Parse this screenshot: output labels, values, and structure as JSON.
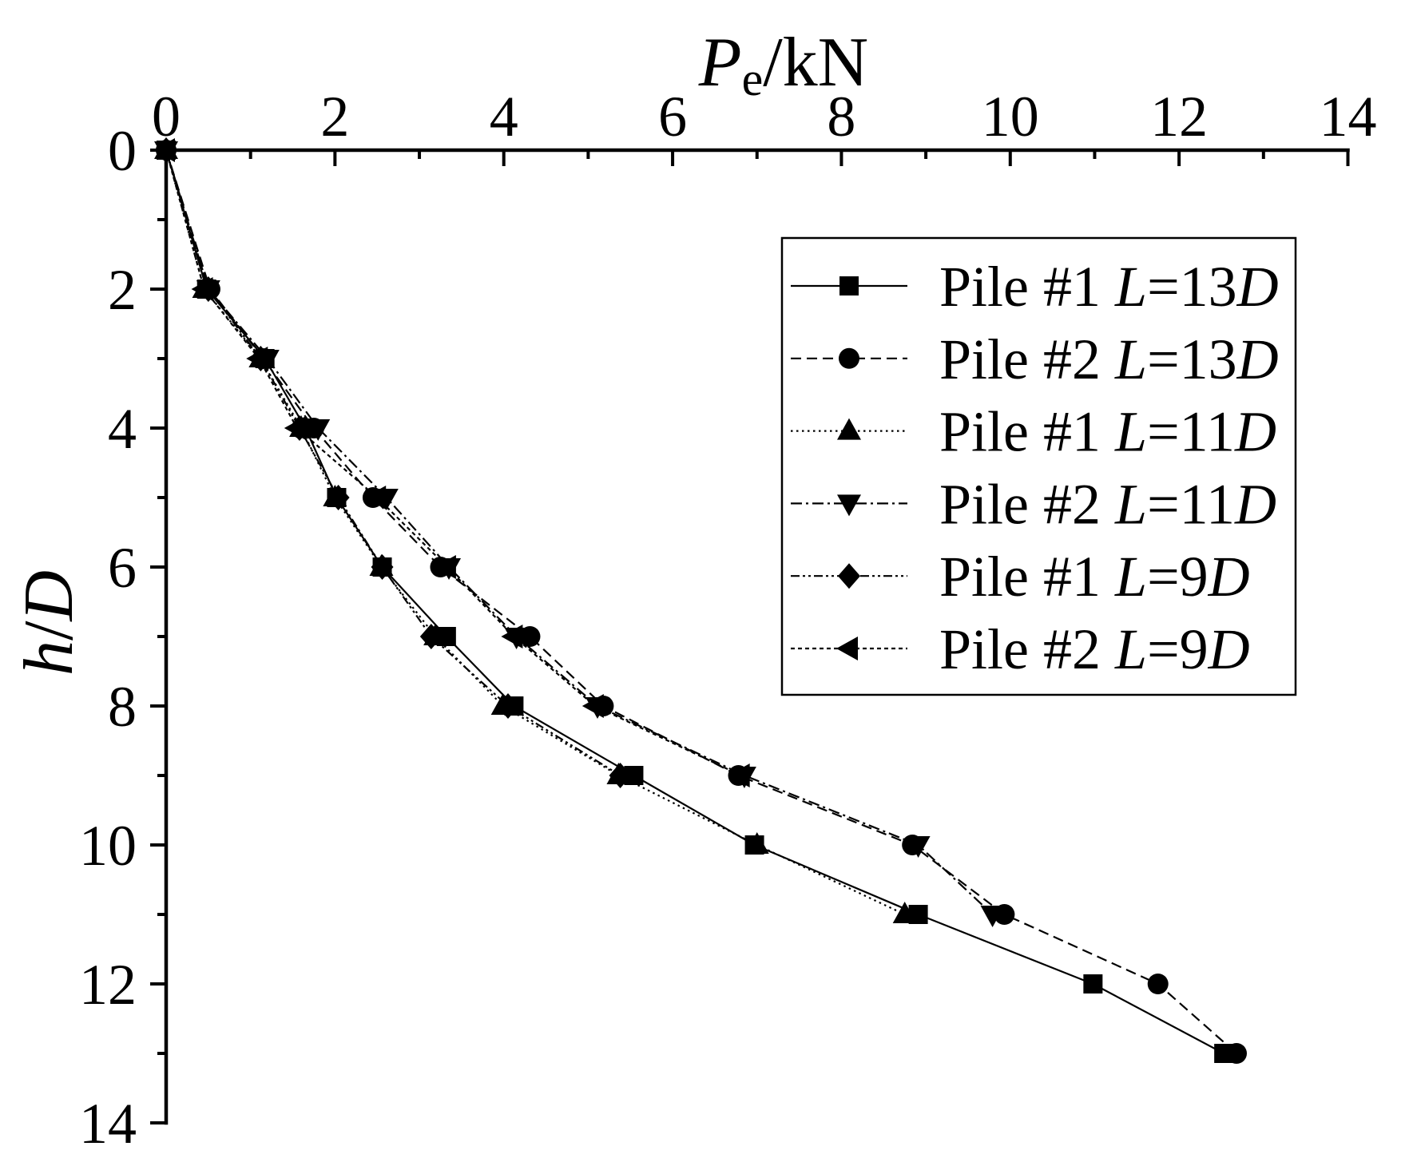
{
  "chart_data": {
    "type": "line",
    "xlabel": {
      "symbol": "P",
      "subscript": "e",
      "unit": "/kN"
    },
    "ylabel": {
      "numerator": "h",
      "separator": "/",
      "denominator": "D"
    },
    "x_axis_position": "top",
    "y_inverted": true,
    "xlim": [
      0,
      14
    ],
    "ylim": [
      0,
      14
    ],
    "x_ticks": [
      0,
      2,
      4,
      6,
      8,
      10,
      12,
      14
    ],
    "y_ticks": [
      0,
      2,
      4,
      6,
      8,
      10,
      12,
      14
    ],
    "grid": false,
    "legend_position": "top-right",
    "series": [
      {
        "name": "Pile #1 L=13D",
        "marker": "square",
        "line_style": "solid",
        "color": "#000000",
        "x": [
          0,
          0.48,
          1.17,
          1.65,
          2.02,
          2.56,
          3.32,
          4.12,
          5.54,
          6.97,
          8.91,
          10.98,
          12.53
        ],
        "y": [
          0,
          2,
          3,
          4,
          5,
          6,
          7,
          8,
          9,
          10,
          11,
          12,
          13
        ]
      },
      {
        "name": "Pile #2 L=13D",
        "marker": "circle",
        "line_style": "dashed",
        "color": "#000000",
        "x": [
          0,
          0.52,
          1.15,
          1.75,
          2.45,
          3.25,
          4.31,
          5.18,
          6.78,
          8.84,
          9.93,
          11.75,
          12.68
        ],
        "y": [
          0,
          2,
          3,
          4,
          5,
          6,
          7,
          8,
          9,
          10,
          11,
          12,
          13
        ]
      },
      {
        "name": "Pile #1 L=11D",
        "marker": "triangle-up",
        "line_style": "dotted",
        "color": "#000000",
        "x": [
          0,
          0.45,
          1.12,
          1.6,
          2.0,
          2.55,
          3.19,
          3.99,
          5.36,
          7.0,
          8.75
        ],
        "y": [
          0,
          2,
          3,
          4,
          5,
          6,
          7,
          8,
          9,
          10,
          11
        ]
      },
      {
        "name": "Pile #2 L=11D",
        "marker": "triangle-down",
        "line_style": "dash-dot",
        "color": "#000000",
        "x": [
          0,
          0.5,
          1.2,
          1.8,
          2.61,
          3.35,
          4.15,
          5.11,
          6.85,
          8.91,
          9.79
        ],
        "y": [
          0,
          2,
          3,
          4,
          5,
          6,
          7,
          8,
          9,
          10,
          11
        ]
      },
      {
        "name": "Pile #1 L=9D",
        "marker": "diamond",
        "line_style": "dash-dot-dot",
        "color": "#000000",
        "x": [
          0,
          0.5,
          1.12,
          1.58,
          2.04,
          2.56,
          3.14,
          4.05,
          5.38
        ],
        "y": [
          0,
          2,
          3,
          4,
          5,
          6,
          7,
          8,
          9
        ]
      },
      {
        "name": "Pile #2 L=9D",
        "marker": "triangle-left",
        "line_style": "short-dash",
        "color": "#000000",
        "x": [
          0,
          0.45,
          1.1,
          1.55,
          2.5,
          3.33,
          4.12,
          5.08,
          6.81
        ],
        "y": [
          0,
          2,
          3,
          4,
          5,
          6,
          7,
          8,
          9
        ]
      }
    ]
  }
}
